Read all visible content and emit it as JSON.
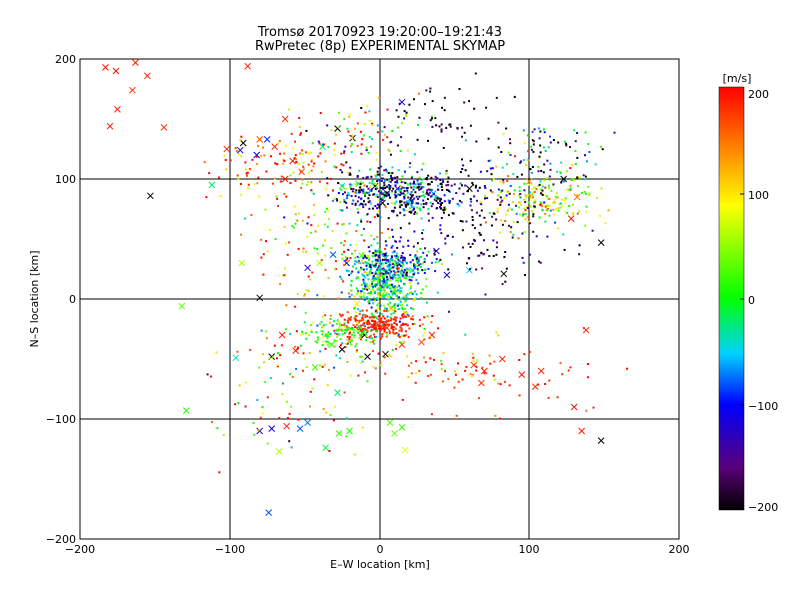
{
  "chart_data": {
    "type": "scatter",
    "title": "Tromsø 20170923 19:20:00–19:21:43",
    "subtitle": "RwPretec (8p) EXPERIMENTAL SKYMAP",
    "xlabel": "E–W location [km]",
    "ylabel": "N–S location [km]",
    "xlim": [
      -200,
      200
    ],
    "ylim": [
      -200,
      200
    ],
    "xticks": [
      "−200",
      "−100",
      "0",
      "100",
      "200"
    ],
    "yticks": [
      "−200",
      "−100",
      "0",
      "100",
      "200"
    ],
    "grid": true,
    "grid_values": [
      -100,
      0,
      100
    ],
    "markers": {
      "small": "dot",
      "large": "x"
    },
    "colorbar": {
      "label": "[m/s]",
      "range": [
        -200,
        200
      ],
      "ticks": [
        "200",
        "100",
        "0",
        "−100",
        "−200"
      ],
      "colormap": [
        "#000000",
        "#5a0078",
        "#0000ff",
        "#00d2ff",
        "#00ff00",
        "#ffff00",
        "#ff7f00",
        "#ff0000"
      ]
    },
    "points": [
      {
        "x": -183,
        "y": 193,
        "v": 190,
        "m": "x"
      },
      {
        "x": -176,
        "y": 190,
        "v": 195,
        "m": "x"
      },
      {
        "x": -163,
        "y": 197,
        "v": 185,
        "m": "x"
      },
      {
        "x": -155,
        "y": 186,
        "v": 190,
        "m": "x"
      },
      {
        "x": -165,
        "y": 174,
        "v": 180,
        "m": "x"
      },
      {
        "x": -175,
        "y": 158,
        "v": 185,
        "m": "x"
      },
      {
        "x": -180,
        "y": 144,
        "v": 190,
        "m": "x"
      },
      {
        "x": -144,
        "y": 143,
        "v": 180,
        "m": "x"
      },
      {
        "x": -88,
        "y": 194,
        "v": 190,
        "m": "x"
      },
      {
        "x": -153,
        "y": 86,
        "v": -200,
        "m": "x"
      },
      {
        "x": -112,
        "y": 95,
        "v": -20,
        "m": "x"
      },
      {
        "x": -92,
        "y": 30,
        "v": 60,
        "m": "x"
      },
      {
        "x": -132,
        "y": -6,
        "v": 30,
        "m": "x"
      },
      {
        "x": -80,
        "y": 1,
        "v": -200,
        "m": "x"
      },
      {
        "x": -129,
        "y": -93,
        "v": 10,
        "m": "x"
      },
      {
        "x": -80,
        "y": -110,
        "v": -120,
        "m": "x"
      },
      {
        "x": -72,
        "y": -108,
        "v": -110,
        "m": "x"
      },
      {
        "x": -62,
        "y": -106,
        "v": 190,
        "m": "x"
      },
      {
        "x": -53,
        "y": -108,
        "v": -80,
        "m": "x"
      },
      {
        "x": -48,
        "y": -103,
        "v": -70,
        "m": "x"
      },
      {
        "x": -67,
        "y": -127,
        "v": 60,
        "m": "x"
      },
      {
        "x": -36,
        "y": -124,
        "v": -10,
        "m": "x"
      },
      {
        "x": -27,
        "y": -112,
        "v": 20,
        "m": "x"
      },
      {
        "x": -74,
        "y": -178,
        "v": -80,
        "m": "x"
      },
      {
        "x": -96,
        "y": -49,
        "v": -40,
        "m": "x"
      },
      {
        "x": -72,
        "y": -48,
        "v": -200,
        "m": "x"
      },
      {
        "x": -56,
        "y": -43,
        "v": 190,
        "m": "x"
      },
      {
        "x": -43,
        "y": -57,
        "v": 20,
        "m": "x"
      },
      {
        "x": -28,
        "y": -78,
        "v": -20,
        "m": "x"
      },
      {
        "x": -20,
        "y": -110,
        "v": 10,
        "m": "x"
      },
      {
        "x": 10,
        "y": -112,
        "v": 40,
        "m": "x"
      },
      {
        "x": 17,
        "y": -126,
        "v": 80,
        "m": "x"
      },
      {
        "x": 7,
        "y": -103,
        "v": 30,
        "m": "x"
      },
      {
        "x": 15,
        "y": -107,
        "v": 20,
        "m": "x"
      },
      {
        "x": -65,
        "y": -30,
        "v": 190,
        "m": "x"
      },
      {
        "x": -63,
        "y": 150,
        "v": 180,
        "m": "x"
      },
      {
        "x": -91,
        "y": 130,
        "v": -200,
        "m": "x"
      },
      {
        "x": -82,
        "y": 120,
        "v": -100,
        "m": "x"
      },
      {
        "x": -93,
        "y": 124,
        "v": -110,
        "m": "x"
      },
      {
        "x": -75,
        "y": 133,
        "v": -90,
        "m": "x"
      },
      {
        "x": -70,
        "y": 127,
        "v": 185,
        "m": "x"
      },
      {
        "x": -58,
        "y": 115,
        "v": 190,
        "m": "x"
      },
      {
        "x": -52,
        "y": 106,
        "v": 180,
        "m": "x"
      },
      {
        "x": -28,
        "y": 142,
        "v": -200,
        "m": "x"
      },
      {
        "x": -18,
        "y": 134,
        "v": -200,
        "m": "x"
      },
      {
        "x": -38,
        "y": 127,
        "v": -10,
        "m": "x"
      },
      {
        "x": 15,
        "y": 164,
        "v": -110,
        "m": "x"
      },
      {
        "x": -80,
        "y": 133,
        "v": 170,
        "m": "x"
      },
      {
        "x": -102,
        "y": 125,
        "v": 180,
        "m": "x"
      },
      {
        "x": -3,
        "y": 94,
        "v": -200,
        "m": "x"
      },
      {
        "x": 5,
        "y": 88,
        "v": -180,
        "m": "x"
      },
      {
        "x": 12,
        "y": 92,
        "v": -150,
        "m": "x"
      },
      {
        "x": 2,
        "y": 80,
        "v": -200,
        "m": "x"
      },
      {
        "x": 20,
        "y": 80,
        "v": -40,
        "m": "x"
      },
      {
        "x": 27,
        "y": 95,
        "v": 20,
        "m": "x"
      },
      {
        "x": 36,
        "y": 88,
        "v": -60,
        "m": "x"
      },
      {
        "x": 60,
        "y": 92,
        "v": -200,
        "m": "x"
      },
      {
        "x": 100,
        "y": 98,
        "v": 140,
        "m": "x"
      },
      {
        "x": 123,
        "y": 100,
        "v": -200,
        "m": "x"
      },
      {
        "x": 132,
        "y": 85,
        "v": 150,
        "m": "x"
      },
      {
        "x": 128,
        "y": 67,
        "v": 190,
        "m": "x"
      },
      {
        "x": 148,
        "y": 47,
        "v": -200,
        "m": "x"
      },
      {
        "x": 83,
        "y": 21,
        "v": -200,
        "m": "x"
      },
      {
        "x": 45,
        "y": 20,
        "v": -110,
        "m": "x"
      },
      {
        "x": 60,
        "y": 24,
        "v": -50,
        "m": "x"
      },
      {
        "x": 38,
        "y": 40,
        "v": -120,
        "m": "x"
      },
      {
        "x": -12,
        "y": 36,
        "v": 20,
        "m": "x"
      },
      {
        "x": -22,
        "y": 30,
        "v": -100,
        "m": "x"
      },
      {
        "x": -31,
        "y": 37,
        "v": -80,
        "m": "x"
      },
      {
        "x": -40,
        "y": 30,
        "v": 60,
        "m": "x"
      },
      {
        "x": -48,
        "y": 26,
        "v": -120,
        "m": "x"
      },
      {
        "x": 4,
        "y": 34,
        "v": -90,
        "m": "x"
      },
      {
        "x": 12,
        "y": 30,
        "v": -70,
        "m": "x"
      },
      {
        "x": 22,
        "y": 24,
        "v": -40,
        "m": "x"
      },
      {
        "x": 10,
        "y": 8,
        "v": 30,
        "m": "x"
      },
      {
        "x": 2,
        "y": 4,
        "v": 10,
        "m": "x"
      },
      {
        "x": -8,
        "y": 10,
        "v": 60,
        "m": "x"
      },
      {
        "x": -15,
        "y": -4,
        "v": 100,
        "m": "x"
      },
      {
        "x": 8,
        "y": -8,
        "v": 60,
        "m": "x"
      },
      {
        "x": 0,
        "y": -18,
        "v": 195,
        "m": "x"
      },
      {
        "x": -5,
        "y": -22,
        "v": 190,
        "m": "x"
      },
      {
        "x": 5,
        "y": -24,
        "v": 185,
        "m": "x"
      },
      {
        "x": -10,
        "y": -30,
        "v": -200,
        "m": "x"
      },
      {
        "x": -20,
        "y": -36,
        "v": 140,
        "m": "x"
      },
      {
        "x": -25,
        "y": -42,
        "v": -200,
        "m": "x"
      },
      {
        "x": -32,
        "y": -38,
        "v": 10,
        "m": "x"
      },
      {
        "x": -8,
        "y": -48,
        "v": -200,
        "m": "x"
      },
      {
        "x": 4,
        "y": -46,
        "v": -200,
        "m": "x"
      },
      {
        "x": 15,
        "y": -38,
        "v": 180,
        "m": "x"
      },
      {
        "x": 28,
        "y": -36,
        "v": 170,
        "m": "x"
      },
      {
        "x": 35,
        "y": -30,
        "v": 190,
        "m": "x"
      },
      {
        "x": 70,
        "y": -60,
        "v": 190,
        "m": "x"
      },
      {
        "x": 82,
        "y": -50,
        "v": 185,
        "m": "x"
      },
      {
        "x": 95,
        "y": -63,
        "v": 190,
        "m": "x"
      },
      {
        "x": 104,
        "y": -73,
        "v": 180,
        "m": "x"
      },
      {
        "x": 108,
        "y": -60,
        "v": 185,
        "m": "x"
      },
      {
        "x": 130,
        "y": -90,
        "v": 190,
        "m": "x"
      },
      {
        "x": 68,
        "y": -70,
        "v": 180,
        "m": "x"
      },
      {
        "x": 63,
        "y": -55,
        "v": 175,
        "m": "x"
      },
      {
        "x": 138,
        "y": -26,
        "v": 190,
        "m": "x"
      },
      {
        "x": 135,
        "y": -110,
        "v": 190,
        "m": "x"
      },
      {
        "x": 148,
        "y": -118,
        "v": -200,
        "m": "x"
      },
      {
        "x": -63,
        "y": 100,
        "v": 190,
        "m": "x"
      },
      {
        "x": -25,
        "y": 94,
        "v": -10,
        "m": "x"
      },
      {
        "x": -14,
        "y": 96,
        "v": 20,
        "m": "x"
      }
    ]
  }
}
